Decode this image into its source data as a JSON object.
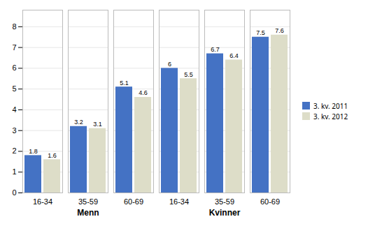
{
  "chart_data": {
    "type": "bar",
    "categories": [
      "16-34",
      "35-59",
      "60-69",
      "16-34",
      "35-59",
      "60-69"
    ],
    "groups": [
      "Menn",
      "Menn",
      "Menn",
      "Kvinner",
      "Kvinner",
      "Kvinner"
    ],
    "series": [
      {
        "name": "3. kv. 2011",
        "color": "#4472C4",
        "values": [
          1.8,
          3.2,
          5.1,
          6.0,
          6.7,
          7.5
        ]
      },
      {
        "name": "3. kv. 2012",
        "color": "#DDDDC8",
        "values": [
          1.6,
          3.1,
          4.6,
          5.5,
          6.4,
          7.6
        ]
      }
    ],
    "ylim": [
      0,
      8.8
    ],
    "yticks": [
      0,
      1,
      2,
      3,
      4,
      5,
      6,
      7,
      8
    ],
    "grid": true,
    "legend": "right",
    "data_labels": true
  }
}
